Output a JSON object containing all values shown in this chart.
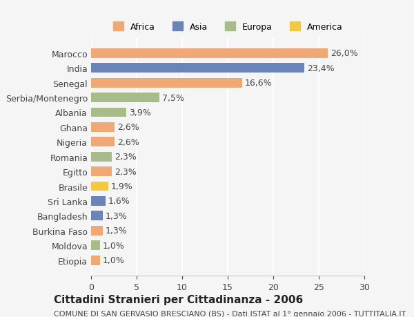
{
  "categories": [
    "Marocco",
    "India",
    "Senegal",
    "Serbia/Montenegro",
    "Albania",
    "Ghana",
    "Nigeria",
    "Romania",
    "Egitto",
    "Brasile",
    "Sri Lanka",
    "Bangladesh",
    "Burkina Faso",
    "Moldova",
    "Etiopia"
  ],
  "values": [
    26.0,
    23.4,
    16.6,
    7.5,
    3.9,
    2.6,
    2.6,
    2.3,
    2.3,
    1.9,
    1.6,
    1.3,
    1.3,
    1.0,
    1.0
  ],
  "labels": [
    "26,0%",
    "23,4%",
    "16,6%",
    "7,5%",
    "3,9%",
    "2,6%",
    "2,6%",
    "2,3%",
    "2,3%",
    "1,9%",
    "1,6%",
    "1,3%",
    "1,3%",
    "1,0%",
    "1,0%"
  ],
  "colors": [
    "#F0A875",
    "#6B84B8",
    "#F0A875",
    "#A8BC8A",
    "#A8BC8A",
    "#F0A875",
    "#F0A875",
    "#A8BC8A",
    "#F0A875",
    "#F5C842",
    "#6B84B8",
    "#6B84B8",
    "#F0A875",
    "#A8BC8A",
    "#F0A875"
  ],
  "legend_labels": [
    "Africa",
    "Asia",
    "Europa",
    "America"
  ],
  "legend_colors": [
    "#F0A875",
    "#6B84B8",
    "#A8BC8A",
    "#F5C842"
  ],
  "title": "Cittadini Stranieri per Cittadinanza - 2006",
  "subtitle": "COMUNE DI SAN GERVASIO BRESCIANO (BS) - Dati ISTAT al 1° gennaio 2006 - TUTTITALIA.IT",
  "xlim": [
    0,
    30
  ],
  "xticks": [
    0,
    5,
    10,
    15,
    20,
    25,
    30
  ],
  "bg_color": "#f5f5f5",
  "grid_color": "#ffffff",
  "label_fontsize": 9,
  "title_fontsize": 11,
  "subtitle_fontsize": 8
}
